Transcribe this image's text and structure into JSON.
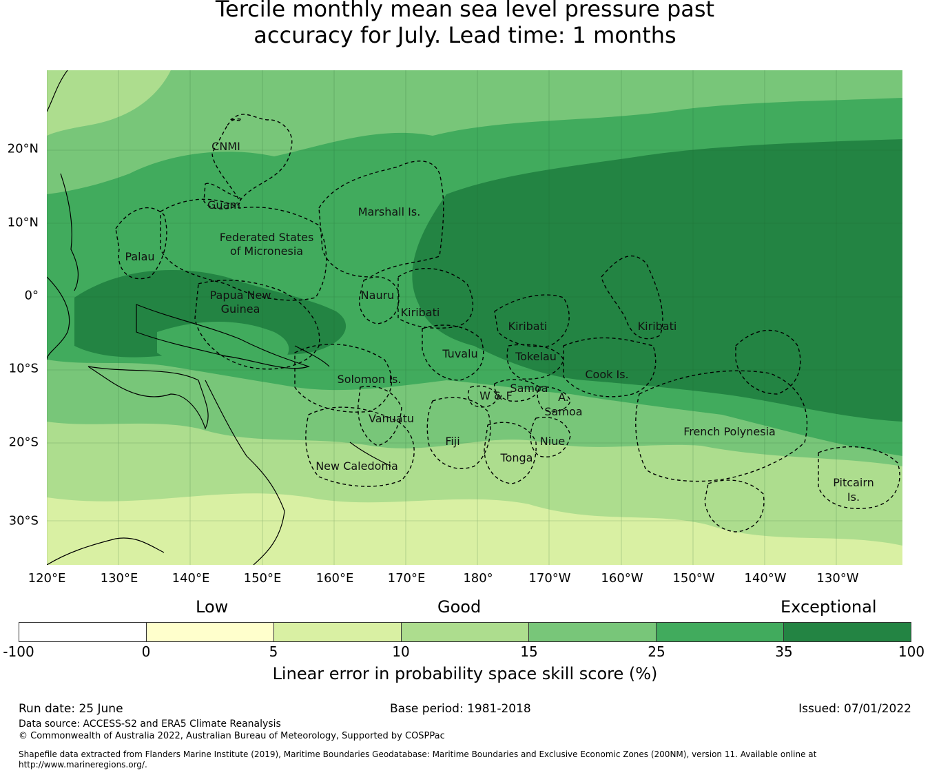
{
  "title_line1": "Tercile monthly mean sea level pressure past",
  "title_line2": "accuracy for July. Lead time: 1 months",
  "longitude_labels": [
    "120°E",
    "130°E",
    "140°E",
    "150°E",
    "160°E",
    "170°E",
    "180°",
    "170°W",
    "160°W",
    "150°W",
    "140°W",
    "130°W"
  ],
  "latitude_labels": [
    "20°N",
    "10°N",
    "0°",
    "10°S",
    "20°S",
    "30°S"
  ],
  "regions": [
    "CNMI",
    "Guam",
    "Marshall Is.",
    "Federated States",
    "of Micronesia",
    "Palau",
    "Papua New",
    "Guinea",
    "Nauru",
    "Kiribati",
    "Kiribati",
    "Kiribati",
    "Tuvalu",
    "Tokelau",
    "Cook Is.",
    "Solomon Is.",
    "Samoa",
    "W & F",
    "A.",
    "Samoa",
    "Vanuatu",
    "Fiji",
    "Niue",
    "Tonga",
    "French Polynesia",
    "New Caledonia",
    "Pitcairn",
    "Is."
  ],
  "colorbar": {
    "category_labels": {
      "low": "Low",
      "good": "Good",
      "exceptional": "Exceptional"
    },
    "ticks": [
      "-100",
      "0",
      "5",
      "10",
      "15",
      "25",
      "35",
      "100"
    ],
    "colors": [
      "#ffffff",
      "#ffffcc",
      "#d9f0a3",
      "#addd8e",
      "#78c679",
      "#41ab5d",
      "#238443"
    ],
    "label": "Linear error in probability space skill score (%)"
  },
  "footer": {
    "run_date": "Run date: 25 June",
    "base_period": "Base period: 1981-2018",
    "issued": "Issued: 07/01/2022",
    "data_source": "Data source: ACCESS-S2 and ERA5 Climate Reanalysis",
    "copyright": "© Commonwealth of Australia 2022, Australian Bureau of Meteorology, Supported by COSPPac",
    "shapefile_note_1": "Shapefile data extracted from Flanders Marine Institute (2019), Maritime Boundaries Geodatabase: Maritime Boundaries and Exclusive Economic Zones (200NM), version 11. Available online at",
    "shapefile_note_2": "http://www.marineregions.org/."
  }
}
